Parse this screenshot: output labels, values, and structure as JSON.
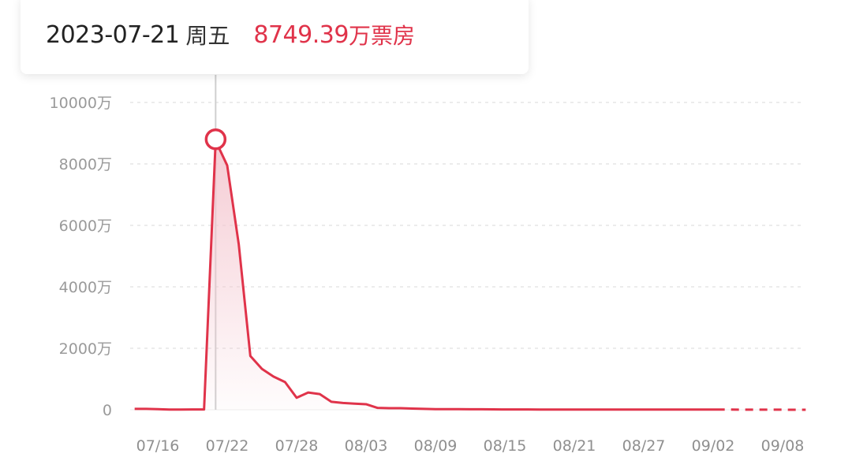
{
  "tooltip": {
    "date": "2023-07-21",
    "weekday": "周五",
    "value": "8749.39",
    "unit": "万票房"
  },
  "colors": {
    "line": "#e0334a",
    "fill": "#f4c6cf",
    "grid": "#e6e6e6",
    "crosshair": "#cfcfcf"
  },
  "chart_data": {
    "type": "area",
    "title": "",
    "xlabel": "",
    "ylabel": "",
    "ylim": [
      0,
      10000
    ],
    "y_unit": "万",
    "y_ticks": [
      "0",
      "2000万",
      "4000万",
      "6000万",
      "8000万",
      "10000万"
    ],
    "y_tick_values": [
      0,
      2000,
      4000,
      6000,
      8000,
      10000
    ],
    "x_ticks": [
      "07/16",
      "07/22",
      "07/28",
      "08/03",
      "08/09",
      "08/15",
      "08/21",
      "08/27",
      "09/02",
      "09/08"
    ],
    "grid": "horizontal-dashed",
    "highlight": {
      "x": "07/21",
      "y": 8749.39
    },
    "x": [
      "07/14",
      "07/15",
      "07/16",
      "07/17",
      "07/18",
      "07/19",
      "07/20",
      "07/21",
      "07/22",
      "07/23",
      "07/24",
      "07/25",
      "07/26",
      "07/27",
      "07/28",
      "07/29",
      "07/30",
      "07/31",
      "08/01",
      "08/02",
      "08/03",
      "08/04",
      "08/05",
      "08/06",
      "08/07",
      "08/08",
      "08/09",
      "08/10",
      "08/11",
      "08/12",
      "08/13",
      "08/14",
      "08/15",
      "08/16",
      "08/17",
      "08/18",
      "08/19",
      "08/20",
      "08/21",
      "08/22",
      "08/23",
      "08/24",
      "08/25",
      "08/26",
      "08/27",
      "08/28",
      "08/29",
      "08/30",
      "08/31",
      "09/01",
      "09/02",
      "09/03"
    ],
    "values": [
      30,
      30,
      20,
      5,
      5,
      10,
      10,
      8749.39,
      7950,
      5380,
      1750,
      1330,
      1080,
      900,
      390,
      560,
      510,
      260,
      220,
      200,
      180,
      60,
      50,
      50,
      40,
      30,
      20,
      20,
      18,
      15,
      15,
      12,
      10,
      10,
      10,
      8,
      8,
      8,
      6,
      6,
      6,
      5,
      5,
      5,
      5,
      5,
      5,
      5,
      5,
      5,
      5,
      5
    ],
    "forecast": {
      "x": [
        "09/03",
        "09/10"
      ],
      "values": [
        5,
        0
      ],
      "style": "dashed"
    }
  }
}
